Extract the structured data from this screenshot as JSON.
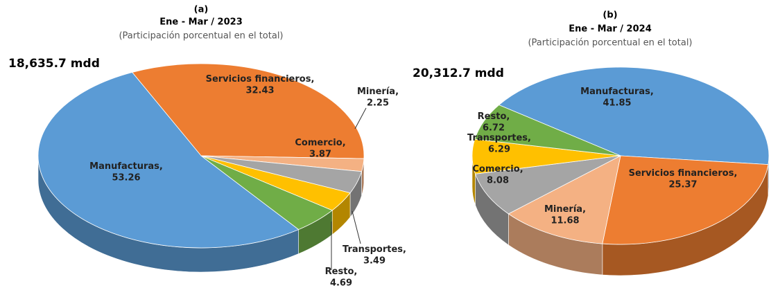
{
  "chart_data": [
    {
      "type": "pie",
      "title": "(a)",
      "subtitle": "Ene - Mar / 2023",
      "note": "(Participación porcentual en el total)",
      "total": "18,635.7 mdd",
      "categories": [
        "Servicios financieros,",
        "Minería,",
        "Comercio,",
        "Transportes,",
        "Resto,",
        "Manufacturas,"
      ],
      "values": [
        32.43,
        2.25,
        3.87,
        3.49,
        4.69,
        53.26
      ],
      "colors": [
        "#ed7d31",
        "#f4b183",
        "#a5a5a5",
        "#ffc000",
        "#70ad47",
        "#5b9bd5"
      ]
    },
    {
      "type": "pie",
      "title": "(b)",
      "subtitle": "Ene - Mar / 2024",
      "note": "(Participación porcentual en el total)",
      "total": "20,312.7 mdd",
      "categories": [
        "Manufacturas,",
        "Servicios financieros,",
        "Minería,",
        "Comercio,",
        "Transportes,",
        "Resto,"
      ],
      "values": [
        41.85,
        25.37,
        11.68,
        8.08,
        6.29,
        6.72
      ],
      "colors": [
        "#5b9bd5",
        "#ed7d31",
        "#f4b183",
        "#a5a5a5",
        "#ffc000",
        "#70ad47"
      ]
    }
  ]
}
